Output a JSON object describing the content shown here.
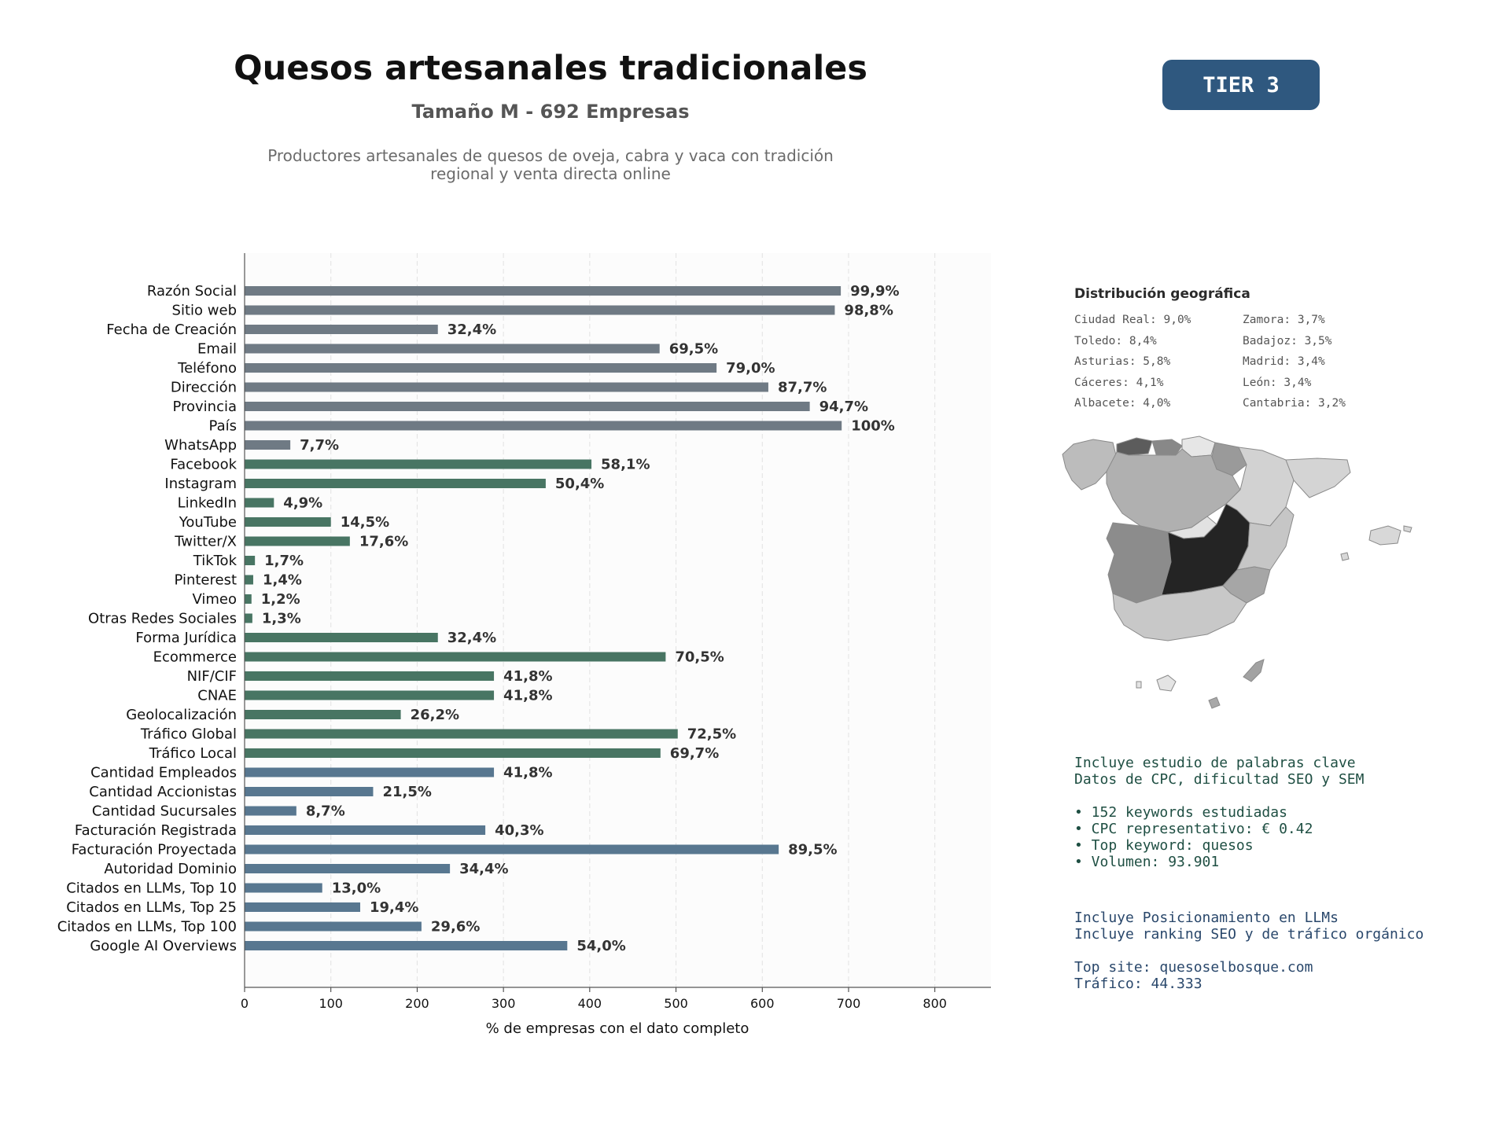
{
  "header": {
    "title": "Quesos artesanales tradicionales",
    "subtitle": "Tamaño M - 692 Empresas",
    "description_lines": [
      "Productores artesanales de quesos de oveja, cabra y vaca con tradición",
      "regional y venta directa online"
    ],
    "tier_badge": "TIER 3"
  },
  "chart_data": {
    "type": "bar",
    "orientation": "horizontal",
    "xlabel": "% de empresas con el dato completo",
    "xlim": [
      0,
      865
    ],
    "xticks": [
      0,
      100,
      200,
      300,
      400,
      500,
      600,
      700,
      800
    ],
    "grid": "vertical dashed",
    "categories": [
      "Razón Social",
      "Sitio web",
      "Fecha de Creación",
      "Email",
      "Teléfono",
      "Dirección",
      "Provincia",
      "País",
      "WhatsApp",
      "Facebook",
      "Instagram",
      "LinkedIn",
      "YouTube",
      "Twitter/X",
      "TikTok",
      "Pinterest",
      "Vimeo",
      "Otras Redes Sociales",
      "Forma Jurídica",
      "Ecommerce",
      "NIF/CIF",
      "CNAE",
      "Geolocalización",
      "Tráfico Global",
      "Tráfico Local",
      "Cantidad Empleados",
      "Cantidad Accionistas",
      "Cantidad Sucursales",
      "Facturación Registrada",
      "Facturación Proyectada",
      "Autoridad Dominio",
      "Citados en LLMs, Top 10",
      "Citados en LLMs, Top 25",
      "Citados en LLMs, Top 100",
      "Google AI Overviews"
    ],
    "values": [
      691,
      684,
      224,
      481,
      547,
      607,
      655,
      692,
      53,
      402,
      349,
      34,
      100,
      122,
      12,
      10,
      8,
      9,
      224,
      488,
      289,
      289,
      181,
      502,
      482,
      289,
      149,
      60,
      279,
      619,
      238,
      90,
      134,
      205,
      374
    ],
    "value_labels": [
      "99,9%",
      "98,8%",
      "32,4%",
      "69,5%",
      "79,0%",
      "87,7%",
      "94,7%",
      "100%",
      "7,7%",
      "58,1%",
      "50,4%",
      "4,9%",
      "14,5%",
      "17,6%",
      "1,7%",
      "1,4%",
      "1,2%",
      "1,3%",
      "32,4%",
      "70,5%",
      "41,8%",
      "41,8%",
      "26,2%",
      "72,5%",
      "69,7%",
      "41,8%",
      "21,5%",
      "8,7%",
      "40,3%",
      "89,5%",
      "34,4%",
      "13,0%",
      "19,4%",
      "29,6%",
      "54,0%"
    ],
    "groups": [
      {
        "from": 0,
        "to": 8,
        "color": "#6f7a84"
      },
      {
        "from": 9,
        "to": 24,
        "color": "#487563"
      },
      {
        "from": 25,
        "to": 34,
        "color": "#587790"
      }
    ]
  },
  "geo": {
    "title": "Distribución geográfica",
    "items": [
      "Ciudad Real: 9,0%",
      "Zamora: 3,7%",
      "Toledo: 8,4%",
      "Badajoz: 3,5%",
      "Asturias: 5,8%",
      "Madrid: 3,4%",
      "Cáceres: 4,1%",
      "León: 3,4%",
      "Albacete: 4,0%",
      "Cantabria: 3,2%"
    ]
  },
  "keywords": {
    "lines": [
      "Incluye estudio de palabras clave",
      "Datos de CPC, dificultad SEO y SEM",
      "",
      "• 152 keywords estudiadas",
      "• CPC representativo: € 0.42",
      "• Top keyword: quesos",
      "• Volumen: 93.901"
    ]
  },
  "llm": {
    "lines": [
      "Incluye Posicionamiento en LLMs",
      "Incluye ranking SEO y de tráfico orgánico",
      "",
      "Top site: quesoselbosque.com",
      "Tráfico: 44.333"
    ]
  },
  "colors": {
    "badge": "#2f587f",
    "group_contact": "#6f7a84",
    "group_social": "#487563",
    "group_business": "#587790"
  }
}
